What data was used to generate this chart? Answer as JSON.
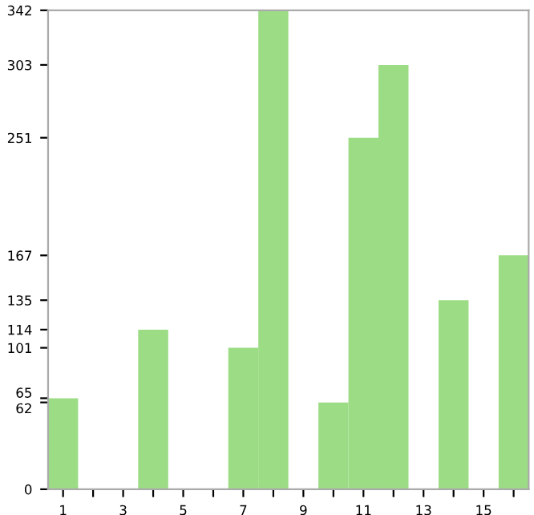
{
  "chart_data": {
    "type": "bar",
    "categories": [
      "1",
      null,
      "3",
      null,
      "5",
      null,
      "7",
      null,
      "9",
      null,
      "11",
      null,
      "13",
      null,
      "15",
      null
    ],
    "values": [
      65,
      0,
      0,
      114,
      0,
      0,
      101,
      342,
      0,
      62,
      251,
      303,
      0,
      135,
      0,
      167
    ],
    "color": "#9cdc85",
    "ylim": [
      0,
      342
    ],
    "yticks": [
      0,
      62,
      65,
      101,
      114,
      135,
      167,
      251,
      303,
      342
    ]
  }
}
